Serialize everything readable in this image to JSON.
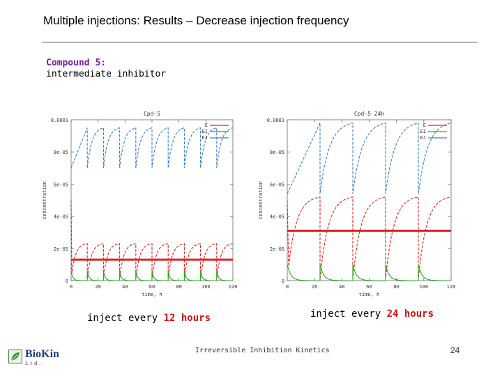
{
  "header": {
    "title": "Multiple injections: Results – Decrease injection frequency"
  },
  "compound": {
    "name": "Compound 5:",
    "description": "intermediate inhibitor"
  },
  "colors": {
    "E": "#dd2222",
    "EI": "#22aa22",
    "EJ": "#3b7fc4",
    "threshold": "#dd2222",
    "accent": "#cc1111",
    "title_purple": "#7a1fa2"
  },
  "chart_data": [
    {
      "type": "line",
      "title": "Cpd-5",
      "xlabel": "time, h",
      "ylabel": "concentration",
      "xlim": [
        0,
        120
      ],
      "ylim": [
        0,
        0.0001
      ],
      "xticks": [
        0,
        20,
        40,
        60,
        80,
        100,
        120
      ],
      "yticks": [
        0,
        2e-05,
        4e-05,
        6e-05,
        8e-05,
        0.0001
      ],
      "xtick_labels": [
        "0",
        "20",
        "40",
        "60",
        "80",
        "100",
        "120"
      ],
      "ytick_labels": [
        "0",
        "2e-05",
        "4e-05",
        "6e-05",
        "8e-05",
        "0.0001"
      ],
      "injection_interval_h": 12,
      "threshold_y": 1.3e-05,
      "legend": [
        "E",
        "EI",
        "EJ"
      ],
      "series": [
        {
          "name": "E",
          "peak": 2.3e-05,
          "trough": 1e-06
        },
        {
          "name": "EI",
          "peak": 6e-06,
          "trough": 0.0
        },
        {
          "name": "EJ",
          "peak": 9.5e-05,
          "trough": 7e-05
        }
      ]
    },
    {
      "type": "line",
      "title": "Cpd-5 24h",
      "xlabel": "time, h",
      "ylabel": "concentration",
      "xlim": [
        0,
        120
      ],
      "ylim": [
        0,
        0.0001
      ],
      "xticks": [
        0,
        20,
        40,
        60,
        80,
        100,
        120
      ],
      "yticks": [
        0,
        2e-05,
        4e-05,
        6e-05,
        8e-05,
        0.0001
      ],
      "xtick_labels": [
        "0",
        "20",
        "40",
        "60",
        "80",
        "100",
        "120"
      ],
      "ytick_labels": [
        "0",
        "2e-05",
        "4e-05",
        "6e-05",
        "8e-05",
        "0.0001"
      ],
      "injection_interval_h": 24,
      "threshold_y": 3.1e-05,
      "legend": [
        "E",
        "EI",
        "EJ"
      ],
      "series": [
        {
          "name": "E",
          "peak": 5.2e-05,
          "trough": 1e-06
        },
        {
          "name": "EI",
          "peak": 1e-05,
          "trough": 0.0
        },
        {
          "name": "EJ",
          "peak": 9.8e-05,
          "trough": 5.4e-05
        }
      ]
    }
  ],
  "captions": [
    {
      "prefix": "inject every ",
      "highlight": "12 hours"
    },
    {
      "prefix": "inject every ",
      "highlight": "24 hours"
    }
  ],
  "footer": {
    "text": "Irreversible Inhibition Kinetics",
    "page": "24"
  },
  "logo": {
    "name": "BioKin",
    "suffix": "Ltd."
  }
}
